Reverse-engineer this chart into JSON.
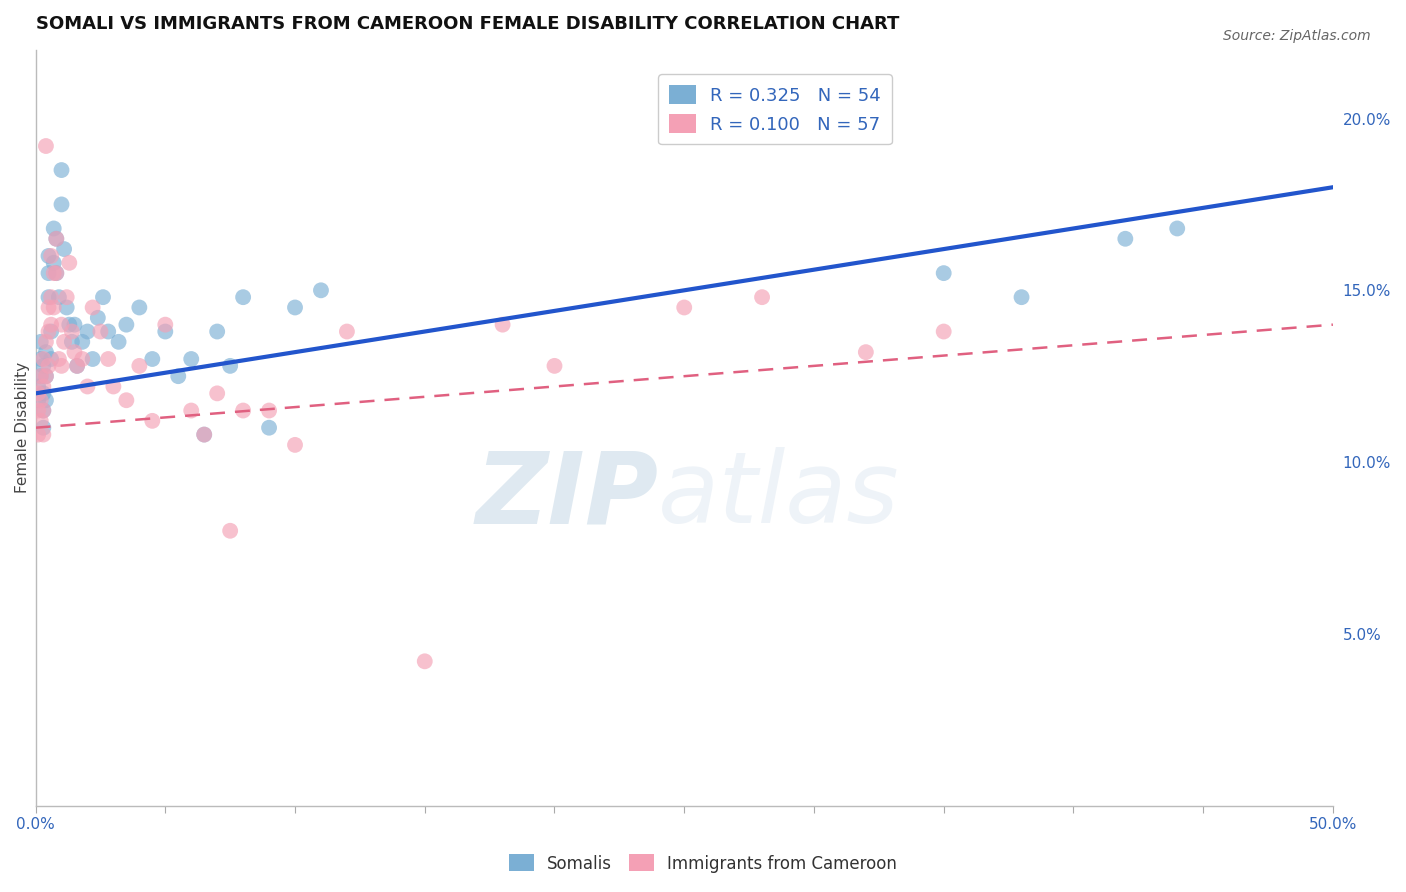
{
  "title": "SOMALI VS IMMIGRANTS FROM CAMEROON FEMALE DISABILITY CORRELATION CHART",
  "source": "Source: ZipAtlas.com",
  "ylabel": "Female Disability",
  "xlim": [
    0,
    0.5
  ],
  "ylim": [
    0,
    0.22
  ],
  "yticks_right": [
    0.05,
    0.1,
    0.15,
    0.2
  ],
  "yticklabels_right": [
    "5.0%",
    "10.0%",
    "15.0%",
    "20.0%"
  ],
  "grid_color": "#cccccc",
  "background_color": "#ffffff",
  "somali_color": "#7bafd4",
  "cameroon_color": "#f4a0b5",
  "somali_line_color": "#2255cc",
  "cameroon_line_color": "#e06080",
  "legend_R_somali": "R = 0.325",
  "legend_N_somali": "N = 54",
  "legend_R_cameroon": "R = 0.100",
  "legend_N_cameroon": "N = 57",
  "somali_line_x0": 0.0,
  "somali_line_y0": 0.12,
  "somali_line_x1": 0.5,
  "somali_line_y1": 0.18,
  "cameroon_line_x0": 0.0,
  "cameroon_line_y0": 0.11,
  "cameroon_line_x1": 0.5,
  "cameroon_line_y1": 0.14,
  "somali_scatter_x": [
    0.001,
    0.001,
    0.002,
    0.002,
    0.002,
    0.003,
    0.003,
    0.003,
    0.003,
    0.004,
    0.004,
    0.004,
    0.005,
    0.005,
    0.005,
    0.006,
    0.006,
    0.007,
    0.007,
    0.008,
    0.008,
    0.009,
    0.01,
    0.01,
    0.011,
    0.012,
    0.013,
    0.014,
    0.015,
    0.016,
    0.018,
    0.02,
    0.022,
    0.024,
    0.026,
    0.028,
    0.032,
    0.035,
    0.04,
    0.045,
    0.05,
    0.055,
    0.06,
    0.065,
    0.07,
    0.075,
    0.08,
    0.09,
    0.1,
    0.11,
    0.35,
    0.38,
    0.42,
    0.44
  ],
  "somali_scatter_y": [
    0.122,
    0.118,
    0.13,
    0.125,
    0.135,
    0.12,
    0.128,
    0.115,
    0.11,
    0.132,
    0.125,
    0.118,
    0.155,
    0.148,
    0.16,
    0.138,
    0.13,
    0.168,
    0.158,
    0.155,
    0.165,
    0.148,
    0.175,
    0.185,
    0.162,
    0.145,
    0.14,
    0.135,
    0.14,
    0.128,
    0.135,
    0.138,
    0.13,
    0.142,
    0.148,
    0.138,
    0.135,
    0.14,
    0.145,
    0.13,
    0.138,
    0.125,
    0.13,
    0.108,
    0.138,
    0.128,
    0.148,
    0.11,
    0.145,
    0.15,
    0.155,
    0.148,
    0.165,
    0.168
  ],
  "cameroon_scatter_x": [
    0.001,
    0.001,
    0.001,
    0.002,
    0.002,
    0.002,
    0.003,
    0.003,
    0.003,
    0.003,
    0.004,
    0.004,
    0.004,
    0.005,
    0.005,
    0.005,
    0.006,
    0.006,
    0.006,
    0.007,
    0.007,
    0.008,
    0.008,
    0.009,
    0.01,
    0.01,
    0.011,
    0.012,
    0.013,
    0.014,
    0.015,
    0.016,
    0.018,
    0.02,
    0.022,
    0.025,
    0.028,
    0.03,
    0.035,
    0.04,
    0.045,
    0.05,
    0.06,
    0.065,
    0.07,
    0.075,
    0.08,
    0.09,
    0.1,
    0.12,
    0.15,
    0.18,
    0.2,
    0.25,
    0.28,
    0.32,
    0.35
  ],
  "cameroon_scatter_y": [
    0.12,
    0.115,
    0.108,
    0.125,
    0.118,
    0.112,
    0.13,
    0.122,
    0.115,
    0.108,
    0.192,
    0.135,
    0.125,
    0.145,
    0.138,
    0.128,
    0.16,
    0.148,
    0.14,
    0.155,
    0.145,
    0.165,
    0.155,
    0.13,
    0.14,
    0.128,
    0.135,
    0.148,
    0.158,
    0.138,
    0.132,
    0.128,
    0.13,
    0.122,
    0.145,
    0.138,
    0.13,
    0.122,
    0.118,
    0.128,
    0.112,
    0.14,
    0.115,
    0.108,
    0.12,
    0.08,
    0.115,
    0.115,
    0.105,
    0.138,
    0.042,
    0.14,
    0.128,
    0.145,
    0.148,
    0.132,
    0.138
  ],
  "watermark_zip": "ZIP",
  "watermark_atlas": "atlas",
  "title_fontsize": 13,
  "axis_label_fontsize": 11,
  "tick_fontsize": 11
}
